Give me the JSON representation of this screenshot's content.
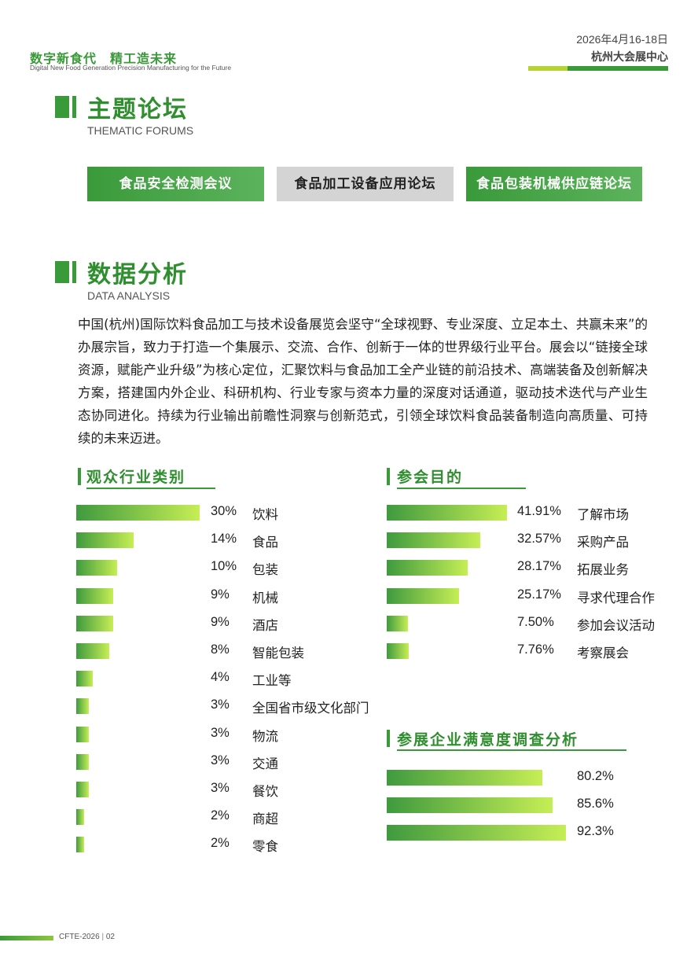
{
  "header": {
    "slogan_cn": "数字新食代　精工造未来",
    "slogan_en": "Digital New Food Generation Precision Manufacturing for the Future",
    "date": "2026年4月16-18日",
    "venue": "杭州大会展中心"
  },
  "forums": {
    "title": "主题论坛",
    "subtitle": "THEMATIC FORUMS",
    "items": [
      "食品安全检测会议",
      "食品加工设备应用论坛",
      "食品包装机械供应链论坛"
    ]
  },
  "analysis": {
    "title": "数据分析",
    "subtitle": "DATA ANALYSIS",
    "intro": "中国(杭州)国际饮料食品加工与技术设备展览会坚守“全球视野、专业深度、立足本土、共赢未来”的办展宗旨，致力于打造一个集展示、交流、合作、创新于一体的世界级行业平台。展会以“链接全球资源，赋能产业升级”为核心定位，汇聚饮料与食品加工全产业链的前沿技术、高端装备及创新解决方案，搭建国内外企业、科研机构、行业专家与资本力量的深度对话通道，驱动技术迭代与产业生态协同进化。持续为行业输出前瞻性洞察与创新范式，引领全球饮料食品装备制造向高质量、可持续的未来迈进。"
  },
  "chart_data": [
    {
      "type": "bar",
      "title": "观众行业类别",
      "categories": [
        "饮料",
        "食品",
        "包装",
        "机械",
        "酒店",
        "智能包装",
        "工业等",
        "全国省市级文化部门",
        "物流",
        "交通",
        "餐饮",
        "商超",
        "零食"
      ],
      "values": [
        30,
        14,
        10,
        9,
        9,
        8,
        4,
        3,
        3,
        3,
        3,
        2,
        2
      ],
      "value_labels": [
        "30%",
        "14%",
        "10%",
        "9%",
        "9%",
        "8%",
        "4%",
        "3%",
        "3%",
        "3%",
        "3%",
        "2%",
        "2%"
      ]
    },
    {
      "type": "bar",
      "title": "参会目的",
      "categories": [
        "了解市场",
        "采购产品",
        "拓展业务",
        "寻求代理合作",
        "参加会议活动",
        "考察展会"
      ],
      "values": [
        41.91,
        32.57,
        28.17,
        25.17,
        7.5,
        7.76
      ],
      "value_labels": [
        "41.91%",
        "32.57%",
        "28.17%",
        "25.17%",
        "7.50%",
        "7.76%"
      ]
    },
    {
      "type": "bar",
      "title": "参展企业满意度调查分析",
      "categories": [
        "",
        "",
        ""
      ],
      "values": [
        80.2,
        85.6,
        92.3
      ],
      "value_labels": [
        "80.2%",
        "85.6%",
        "92.3%"
      ]
    }
  ],
  "footer": {
    "code": "CFTE-2026",
    "page": "02"
  },
  "colors": {
    "brand_green": "#3a9a3a",
    "light_green": "#c6ee55",
    "inactive_gray": "#d4d4d4"
  }
}
